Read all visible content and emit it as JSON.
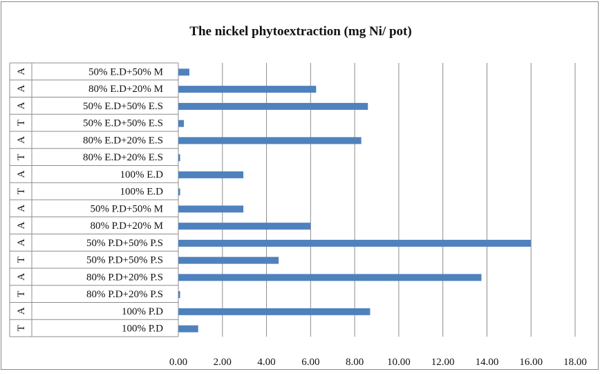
{
  "chart_data": {
    "type": "bar",
    "orientation": "horizontal",
    "title": "The nickel phytoextraction (mg Ni/ pot)",
    "xlabel": "",
    "ylabel": "",
    "xlim": [
      0,
      18
    ],
    "x_ticks": [
      "0.00",
      "2.00",
      "4.00",
      "6.00",
      "8.00",
      "10.00",
      "12.00",
      "14.00",
      "16.00",
      "18.00"
    ],
    "grid": "vertical",
    "bar_color": "#4f81bd",
    "categories": [
      {
        "group": "A",
        "label": "50% E.D+50% M"
      },
      {
        "group": "A",
        "label": "80% E.D+20% M"
      },
      {
        "group": "A",
        "label": "50% E.D+50% E.S"
      },
      {
        "group": "T",
        "label": "50% E.D+50% E.S"
      },
      {
        "group": "A",
        "label": "80% E.D+20% E.S"
      },
      {
        "group": "T",
        "label": "80% E.D+20% E.S"
      },
      {
        "group": "A",
        "label": "100% E.D"
      },
      {
        "group": "T",
        "label": "100% E.D"
      },
      {
        "group": "A",
        "label": "50% P.D+50% M"
      },
      {
        "group": "A",
        "label": "80% P.D+20% M"
      },
      {
        "group": "A",
        "label": "50% P.D+50% P.S"
      },
      {
        "group": "T",
        "label": "50% P.D+50% P.S"
      },
      {
        "group": "A",
        "label": "80% P.D+20% P.S"
      },
      {
        "group": "T",
        "label": "80% P.D+20% P.S"
      },
      {
        "group": "A",
        "label": "100% P.D"
      },
      {
        "group": "T",
        "label": "100% P.D"
      }
    ],
    "values": [
      0.5,
      6.25,
      8.6,
      0.25,
      8.3,
      0.08,
      2.95,
      0.08,
      2.95,
      6.0,
      16.0,
      4.55,
      13.75,
      0.08,
      8.7,
      0.9
    ]
  }
}
